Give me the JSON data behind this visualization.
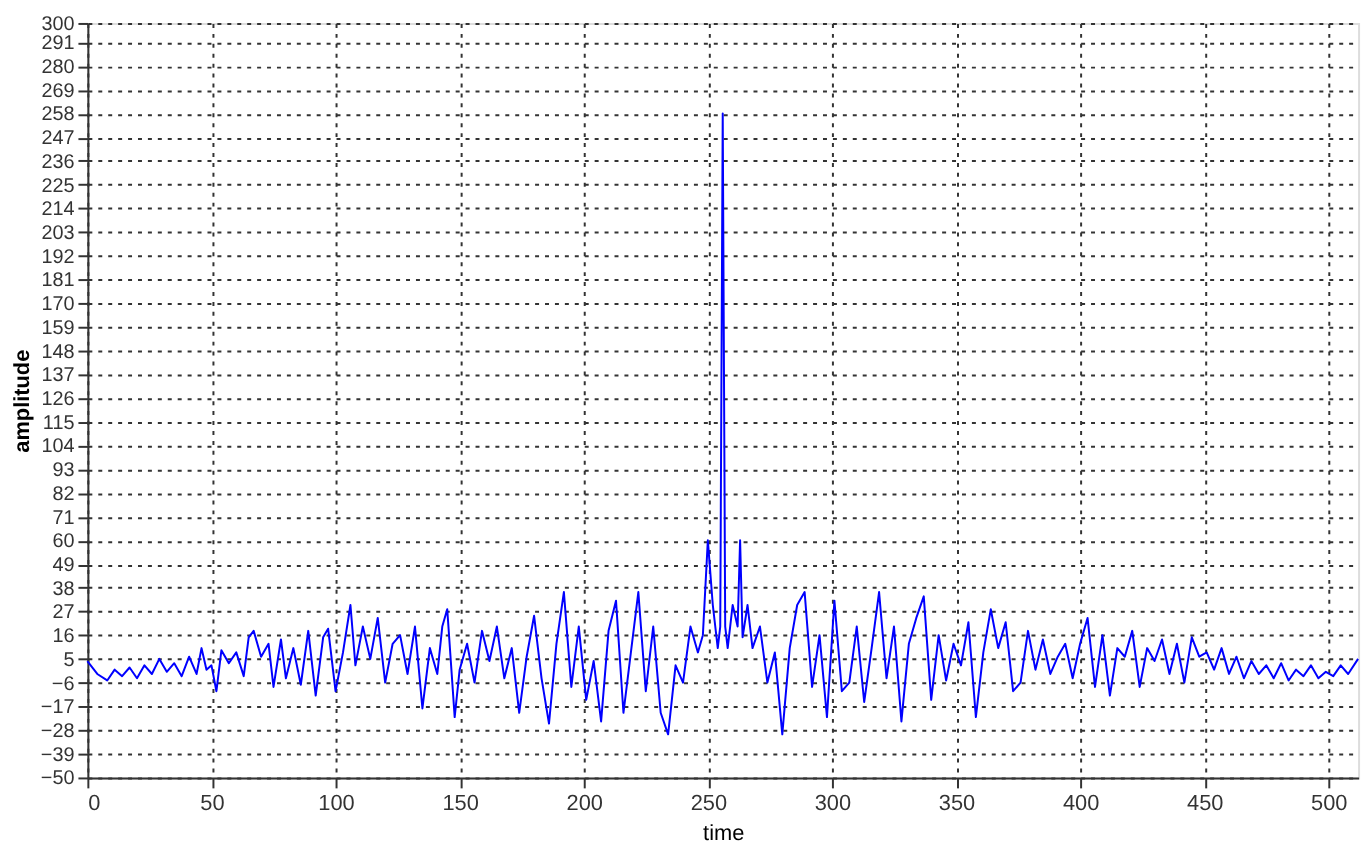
{
  "chart_data": {
    "type": "line",
    "xlabel": "time",
    "ylabel": "amplitude",
    "xlim": [
      0,
      512
    ],
    "ylim": [
      -50,
      300
    ],
    "xticks": [
      0,
      50,
      100,
      150,
      200,
      250,
      300,
      350,
      400,
      450,
      500
    ],
    "yticks": [
      -50,
      -39,
      -28,
      -17,
      -6,
      5,
      16,
      27,
      38,
      49,
      60,
      71,
      82,
      93,
      104,
      115,
      126,
      137,
      148,
      159,
      170,
      181,
      192,
      203,
      214,
      225,
      236,
      247,
      258,
      269,
      280,
      291,
      300
    ],
    "grid": true,
    "marker": "none",
    "line_style": "solid",
    "series": [
      {
        "color": "#0000ff",
        "x": [
          0,
          4,
          8,
          11,
          14,
          17,
          20,
          23,
          26,
          29,
          32,
          35,
          38,
          41,
          44,
          46,
          48,
          50,
          52,
          54,
          57,
          60,
          63,
          65,
          67,
          70,
          73,
          75,
          78,
          80,
          83,
          86,
          89,
          92,
          95,
          97,
          100,
          103,
          106,
          108,
          111,
          114,
          117,
          120,
          123,
          126,
          129,
          132,
          135,
          138,
          141,
          143,
          145,
          148,
          150,
          153,
          156,
          159,
          162,
          165,
          168,
          171,
          174,
          177,
          180,
          183,
          186,
          189,
          192,
          195,
          198,
          201,
          204,
          207,
          210,
          213,
          216,
          219,
          222,
          225,
          228,
          231,
          234,
          237,
          240,
          243,
          246,
          248,
          250,
          252,
          254,
          255,
          256,
          257,
          258,
          260,
          262,
          263,
          264,
          266,
          268,
          271,
          274,
          277,
          280,
          283,
          286,
          289,
          292,
          295,
          298,
          301,
          304,
          307,
          310,
          313,
          316,
          319,
          322,
          325,
          328,
          331,
          334,
          337,
          340,
          343,
          346,
          349,
          352,
          355,
          358,
          361,
          364,
          367,
          370,
          373,
          376,
          379,
          382,
          385,
          388,
          391,
          394,
          397,
          400,
          403,
          406,
          409,
          412,
          415,
          418,
          421,
          424,
          427,
          430,
          433,
          436,
          439,
          442,
          445,
          448,
          451,
          454,
          457,
          460,
          463,
          466,
          469,
          472,
          475,
          478,
          481,
          484,
          487,
          490,
          493,
          496,
          499,
          502,
          505,
          508,
          512
        ],
        "values": [
          4,
          -2,
          -5,
          0,
          -3,
          1,
          -4,
          2,
          -2,
          5,
          -1,
          3,
          -3,
          6,
          -2,
          10,
          0,
          2,
          -10,
          9,
          3,
          8,
          -3,
          15,
          18,
          6,
          12,
          -8,
          14,
          -4,
          10,
          -7,
          18,
          -12,
          15,
          19,
          -10,
          8,
          30,
          2,
          20,
          5,
          24,
          -6,
          12,
          16,
          -2,
          20,
          -18,
          10,
          -2,
          20,
          28,
          -22,
          0,
          12,
          -6,
          18,
          4,
          20,
          -4,
          10,
          -20,
          6,
          25,
          -4,
          -25,
          12,
          36,
          -8,
          20,
          -14,
          4,
          -24,
          18,
          32,
          -20,
          8,
          36,
          -10,
          20,
          -20,
          -30,
          2,
          -6,
          20,
          8,
          16,
          60,
          30,
          10,
          20,
          258,
          20,
          10,
          30,
          20,
          60,
          15,
          30,
          10,
          20,
          -6,
          8,
          -30,
          10,
          30,
          36,
          -8,
          16,
          -22,
          32,
          -10,
          -6,
          20,
          -15,
          10,
          36,
          -4,
          20,
          -24,
          12,
          24,
          34,
          -14,
          16,
          -5,
          12,
          2,
          22,
          -22,
          8,
          28,
          10,
          22,
          -10,
          -6,
          18,
          0,
          14,
          -2,
          6,
          12,
          -4,
          12,
          24,
          -8,
          16,
          -12,
          10,
          6,
          18,
          -8,
          10,
          4,
          14,
          -2,
          12,
          -6,
          15,
          6,
          8,
          0,
          10,
          -2,
          6,
          -4,
          4,
          -2,
          2,
          -4,
          3,
          -5,
          0,
          -3,
          2,
          -4,
          -1,
          -3,
          2,
          -2,
          5
        ]
      }
    ]
  }
}
